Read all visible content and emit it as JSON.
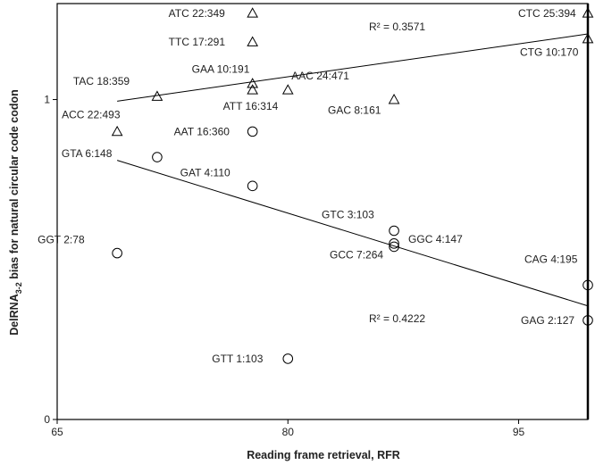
{
  "chart_data": {
    "type": "scatter",
    "title": "",
    "xlabel": "Reading frame retrieval, RFR",
    "ylabel_main": "DelRNA",
    "ylabel_sub": "3-2",
    "ylabel_rest": " bias for natural circular code codon",
    "xlim": [
      65,
      99.5
    ],
    "ylim": [
      0,
      1.3
    ],
    "xticks": [
      "65",
      "80",
      "95"
    ],
    "xtick_values": [
      65,
      80,
      95
    ],
    "yticks": [
      "0",
      "1"
    ],
    "ytick_values": [
      0,
      1
    ],
    "grid": false,
    "legend": "none",
    "series": [
      {
        "marker": "triangle",
        "points": [
          {
            "label": "ATC 22:349",
            "x": 77.7,
            "y": 1.27
          },
          {
            "label": "TTC 17:291",
            "x": 77.7,
            "y": 1.18
          },
          {
            "label": "GAA 10:191",
            "x": 77.7,
            "y": 1.05
          },
          {
            "label": "ATT 16:314",
            "x": 77.7,
            "y": 1.03
          },
          {
            "label": "AAC 24:471",
            "x": 80.0,
            "y": 1.03
          },
          {
            "label": "GAC 8:161",
            "x": 86.9,
            "y": 1.0
          },
          {
            "label": "TAC 18:359",
            "x": 71.5,
            "y": 1.01
          },
          {
            "label": "ACC 22:493",
            "x": 68.9,
            "y": 0.9
          },
          {
            "label": "CTC 25:394",
            "x": 99.5,
            "y": 1.27
          },
          {
            "label": "CTG 10:170",
            "x": 99.5,
            "y": 1.19
          }
        ]
      },
      {
        "marker": "circle",
        "points": [
          {
            "label": "AAT 16:360",
            "x": 77.7,
            "y": 0.9
          },
          {
            "label": "GTA 6:148",
            "x": 71.5,
            "y": 0.82
          },
          {
            "label": "GAT 4:110",
            "x": 77.7,
            "y": 0.73
          },
          {
            "label": "GTC 3:103",
            "x": 86.9,
            "y": 0.59
          },
          {
            "label": "GGC 4:147",
            "x": 86.9,
            "y": 0.55
          },
          {
            "label": "GCC 7:264",
            "x": 86.9,
            "y": 0.54
          },
          {
            "label": "GGT 2:78",
            "x": 68.9,
            "y": 0.52
          },
          {
            "label": "CAG 4:195",
            "x": 99.5,
            "y": 0.42
          },
          {
            "label": "GAG 2:127",
            "x": 99.5,
            "y": 0.31
          },
          {
            "label": "GTT 1:103",
            "x": 80.0,
            "y": 0.19
          }
        ]
      }
    ],
    "trendlines": [
      {
        "series": 0,
        "x": [
          68.9,
          99.5
        ],
        "y": [
          0.995,
          1.205
        ],
        "r2_label": "R² = 0.3571"
      },
      {
        "series": 1,
        "x": [
          68.9,
          99.5
        ],
        "y": [
          0.81,
          0.355
        ],
        "r2_label": "R² = 0.4222"
      }
    ]
  }
}
